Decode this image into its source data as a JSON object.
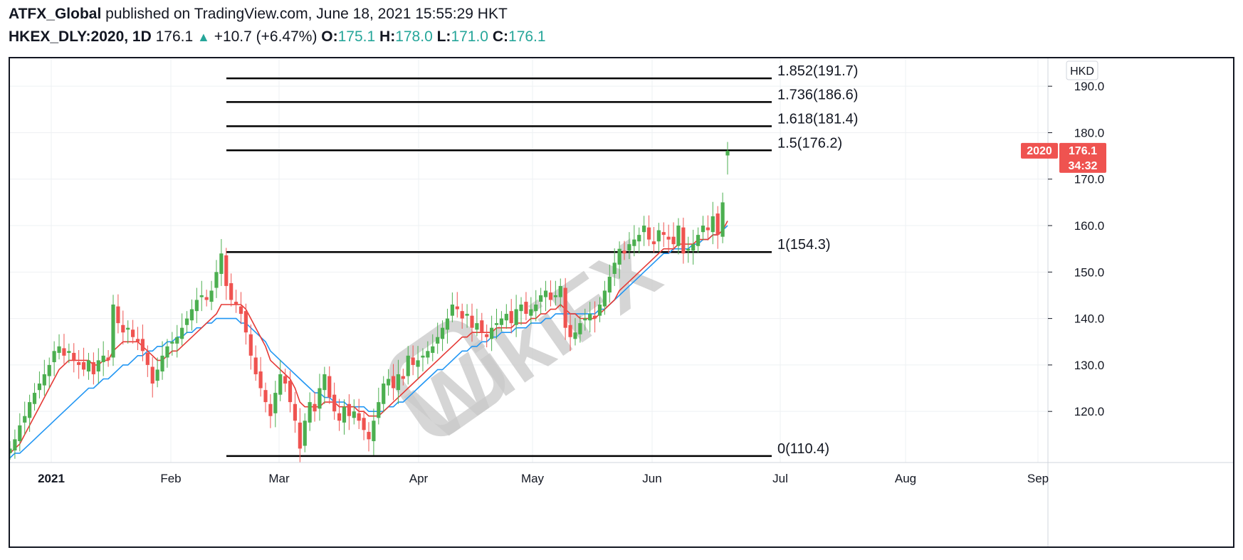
{
  "header": {
    "publisher": "ATFX_Global",
    "published_text": "published on TradingView.com, June 18, 2021 15:55:29 HKT",
    "symbol": "HKEX_DLY:2020, 1D",
    "last": "176.1",
    "change": "+10.7 (+6.47%)",
    "o_label": "O:",
    "o_value": "175.1",
    "h_label": "H:",
    "h_value": "178.0",
    "l_label": "L:",
    "l_value": "171.0",
    "c_label": "C:",
    "c_value": "176.1"
  },
  "chart_data": {
    "type": "candlestick",
    "currency": "HKD",
    "y_range": [
      109,
      196
    ],
    "y_ticks": [
      120,
      130,
      140,
      150,
      160,
      170,
      180,
      190
    ],
    "y_tick_labels": [
      "120.0",
      "130.0",
      "140.0",
      "150.0",
      "160.0",
      "170.0",
      "180.0",
      "190.0"
    ],
    "x_tick_labels": [
      "2021",
      "Feb",
      "Mar",
      "Apr",
      "May",
      "Jun",
      "Jul",
      "Aug",
      "Sep"
    ],
    "price_badge": {
      "symbol": "2020",
      "price": "176.1",
      "countdown": "34:32"
    },
    "fib_levels": [
      {
        "label": "1.852(191.7)",
        "value": 191.7
      },
      {
        "label": "1.736(186.6)",
        "value": 186.6
      },
      {
        "label": "1.618(181.4)",
        "value": 181.4
      },
      {
        "label": "1.5(176.2)",
        "value": 176.2
      },
      {
        "label": "1(154.3)",
        "value": 154.3
      },
      {
        "label": "0(110.4)",
        "value": 110.4
      }
    ],
    "candles_close": [
      112,
      114,
      117,
      119,
      122,
      124,
      126,
      128,
      130,
      133,
      134,
      132,
      133,
      131,
      130,
      129,
      131,
      128,
      131,
      132,
      131,
      143,
      139,
      137,
      138,
      136,
      135,
      133,
      130,
      126,
      129,
      132,
      134,
      135,
      136,
      138,
      140,
      142,
      144,
      145,
      144,
      146,
      150,
      154,
      147,
      144,
      143,
      141,
      137,
      132,
      128,
      125,
      122,
      119,
      124,
      128,
      126,
      122,
      118,
      112,
      118,
      122,
      120,
      125,
      128,
      123,
      120,
      118,
      121,
      119,
      120,
      118,
      116,
      114,
      118,
      122,
      126,
      127,
      125,
      128,
      127,
      132,
      130,
      131,
      132,
      133,
      134,
      136,
      138,
      140,
      143,
      142,
      140,
      141,
      138,
      139,
      137,
      136,
      138,
      139,
      140,
      141,
      139,
      142,
      143,
      141,
      142,
      143,
      145,
      146,
      144,
      145,
      147,
      138,
      136,
      137,
      139,
      140,
      141,
      140,
      143,
      146,
      149,
      152,
      155,
      154,
      156,
      157,
      158,
      160,
      157,
      156,
      159,
      158,
      157,
      156,
      160,
      154,
      155,
      156,
      158,
      160,
      159,
      162,
      158,
      165,
      176.1
    ],
    "ema_fast": [
      111,
      112,
      113,
      115,
      117,
      119,
      121,
      123,
      125,
      127,
      129,
      130,
      131,
      131,
      131,
      131,
      131,
      130,
      130,
      131,
      131,
      133,
      134,
      135,
      135,
      135,
      135,
      134,
      133,
      132,
      131,
      131,
      132,
      133,
      133,
      134,
      135,
      136,
      137,
      138,
      139,
      140,
      141,
      143,
      143,
      143,
      143,
      143,
      142,
      140,
      138,
      136,
      134,
      131,
      130,
      129,
      128,
      127,
      125,
      122,
      121,
      121,
      121,
      121,
      122,
      122,
      122,
      121,
      121,
      121,
      121,
      120,
      120,
      119,
      119,
      119,
      120,
      121,
      122,
      123,
      124,
      125,
      126,
      127,
      128,
      129,
      130,
      131,
      132,
      133,
      134,
      135,
      136,
      136,
      137,
      137,
      137,
      137,
      137,
      138,
      138,
      138,
      138,
      139,
      139,
      139,
      140,
      140,
      141,
      141,
      142,
      142,
      143,
      142,
      141,
      141,
      140,
      140,
      140,
      140,
      141,
      142,
      143,
      144,
      146,
      147,
      148,
      149,
      150,
      151,
      152,
      153,
      154,
      155,
      155,
      155,
      156,
      156,
      156,
      156,
      157,
      157,
      157,
      158,
      158,
      159,
      161
    ],
    "sma_slow": [
      110,
      111,
      111,
      112,
      113,
      114,
      115,
      116,
      117,
      118,
      119,
      120,
      121,
      122,
      123,
      124,
      125,
      125,
      126,
      127,
      127,
      128,
      129,
      130,
      130,
      131,
      132,
      132,
      133,
      133,
      134,
      134,
      135,
      135,
      136,
      136,
      137,
      137,
      138,
      138,
      139,
      139,
      140,
      140,
      140,
      140,
      140,
      139,
      139,
      138,
      137,
      136,
      135,
      133,
      132,
      131,
      130,
      129,
      128,
      127,
      126,
      125,
      124,
      124,
      123,
      123,
      122,
      122,
      122,
      121,
      121,
      121,
      121,
      120,
      120,
      120,
      120,
      121,
      121,
      122,
      122,
      123,
      124,
      125,
      126,
      127,
      128,
      129,
      129,
      130,
      131,
      132,
      133,
      133,
      134,
      134,
      135,
      135,
      136,
      136,
      137,
      137,
      137,
      138,
      138,
      138,
      139,
      139,
      139,
      140,
      140,
      141,
      141,
      141,
      141,
      141,
      141,
      141,
      141,
      141,
      142,
      142,
      143,
      144,
      145,
      146,
      147,
      148,
      149,
      150,
      151,
      152,
      153,
      154,
      154,
      155,
      155,
      155,
      155,
      156,
      156,
      157,
      157,
      158,
      158,
      159,
      160
    ]
  },
  "colors": {
    "up": "#4caf50",
    "down": "#ef5350",
    "ema_fast": "#e53935",
    "sma_slow": "#2196f3",
    "grid": "#eef0f3",
    "fib_line": "#000000",
    "badge": "#ef5350"
  },
  "watermark": "WikiFX"
}
